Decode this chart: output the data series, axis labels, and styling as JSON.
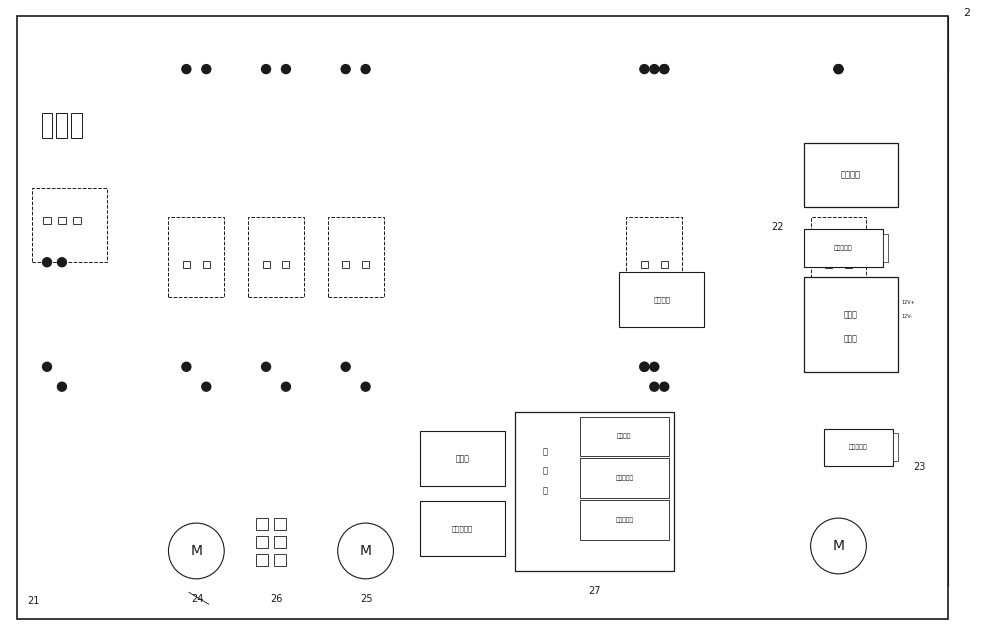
{
  "bg_color": "#ffffff",
  "line_color": "#1a1a1a",
  "fig_width": 10.0,
  "fig_height": 6.32,
  "label_2": "2",
  "label_21": "21",
  "label_22": "22",
  "label_23": "23",
  "label_24": "24",
  "label_25": "25",
  "label_26": "26",
  "label_27": "27",
  "text_zhiliudianYuan": "直流电源",
  "text_dianyaChuanGanQi": "电压传感器",
  "text_zhuanXiangBeng": "转向泵\n控制器",
  "text_dianliuChuanGanQi": "电流传感器",
  "text_kaiGuanDianYuan": "开关电源",
  "text_xianShiPing": "显示屏",
  "text_jianPan": "键盘、鼠标",
  "text_gong": "工",
  "text_kong": "控",
  "text_ji": "机",
  "text_tongXunBanKa": "通讯板卡",
  "text_shuZiLiangBanKa": "数字量板卡",
  "text_moNiLiangBanKa": "模拟量板卡",
  "text_M": "M",
  "text_12v_pos": "12V+",
  "text_12v_neg": "12V-"
}
